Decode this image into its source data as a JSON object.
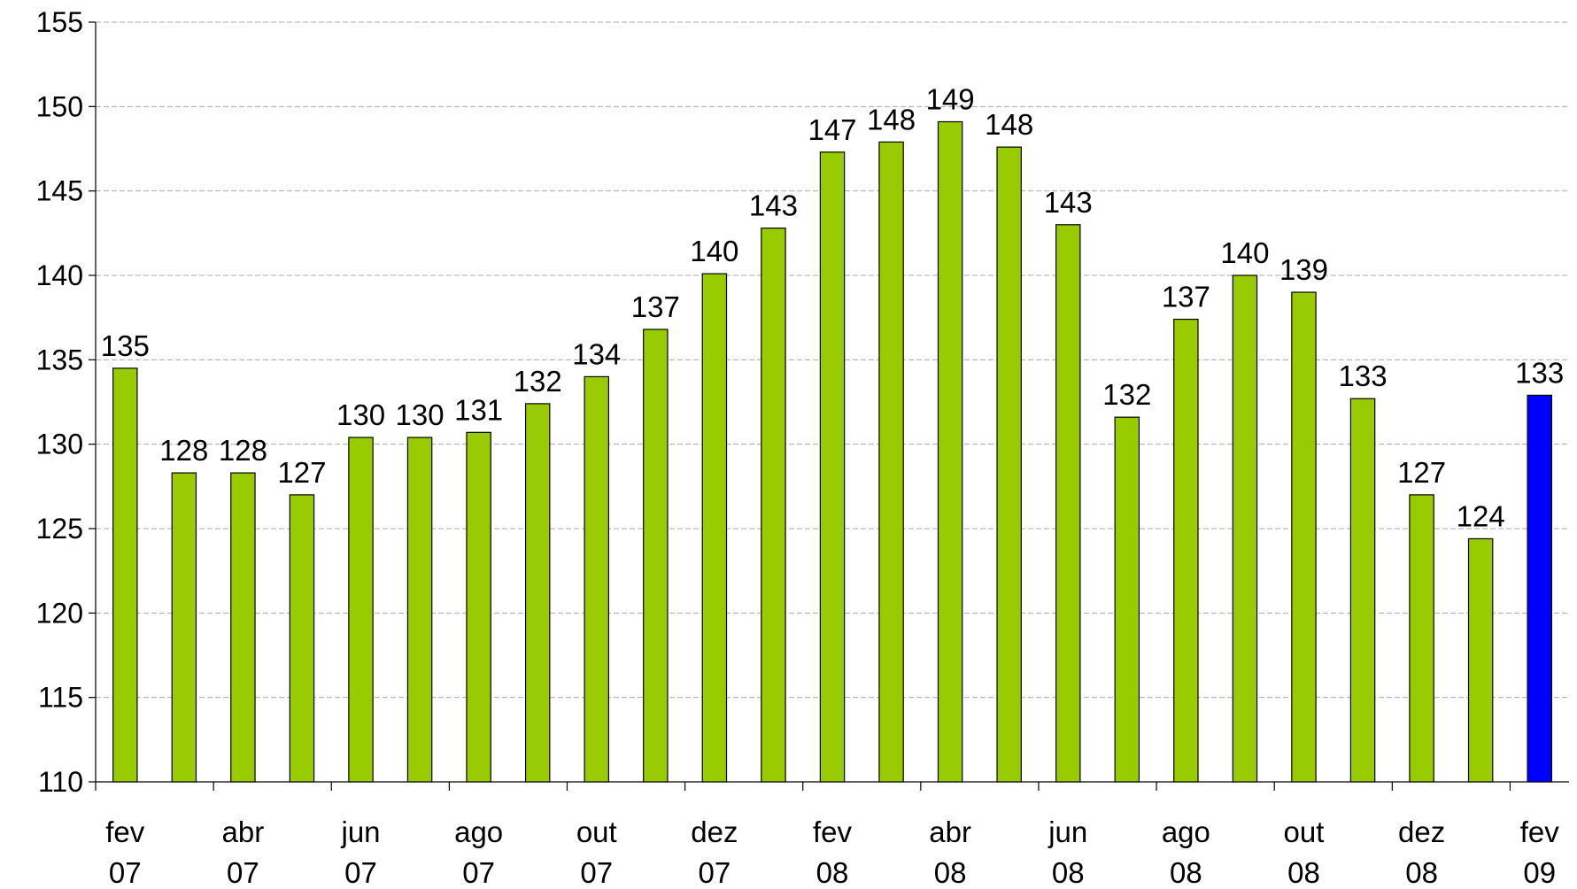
{
  "chart_data": {
    "type": "bar",
    "categories": [
      [
        "fev",
        "07"
      ],
      null,
      [
        "abr",
        "07"
      ],
      null,
      [
        "jun",
        "07"
      ],
      null,
      [
        "ago",
        "07"
      ],
      null,
      [
        "out",
        "07"
      ],
      null,
      [
        "dez",
        "07"
      ],
      null,
      [
        "fev",
        "08"
      ],
      null,
      [
        "abr",
        "08"
      ],
      null,
      [
        "jun",
        "08"
      ],
      null,
      [
        "ago",
        "08"
      ],
      null,
      [
        "out",
        "08"
      ],
      null,
      [
        "dez",
        "08"
      ],
      null,
      [
        "fev",
        "09"
      ]
    ],
    "values": [
      134.5,
      128.3,
      128.3,
      127.0,
      130.4,
      130.4,
      130.7,
      132.4,
      134.0,
      136.8,
      140.1,
      142.8,
      147.3,
      147.9,
      149.1,
      147.6,
      143.0,
      131.6,
      137.4,
      140.0,
      139.0,
      132.7,
      127.0,
      124.4,
      132.9
    ],
    "value_labels": [
      "135",
      "128",
      "128",
      "127",
      "130",
      "130",
      "131",
      "132",
      "134",
      "137",
      "140",
      "143",
      "147",
      "148",
      "149",
      "148",
      "143",
      "132",
      "137",
      "140",
      "139",
      "133",
      "127",
      "124",
      "133"
    ],
    "colors": [
      "#99cc00",
      "#99cc00",
      "#99cc00",
      "#99cc00",
      "#99cc00",
      "#99cc00",
      "#99cc00",
      "#99cc00",
      "#99cc00",
      "#99cc00",
      "#99cc00",
      "#99cc00",
      "#99cc00",
      "#99cc00",
      "#99cc00",
      "#99cc00",
      "#99cc00",
      "#99cc00",
      "#99cc00",
      "#99cc00",
      "#99cc00",
      "#99cc00",
      "#99cc00",
      "#99cc00",
      "#0000ff"
    ],
    "ylim": [
      110,
      155
    ],
    "yticks": [
      110,
      115,
      120,
      125,
      130,
      135,
      140,
      145,
      150,
      155
    ],
    "grid": true
  }
}
